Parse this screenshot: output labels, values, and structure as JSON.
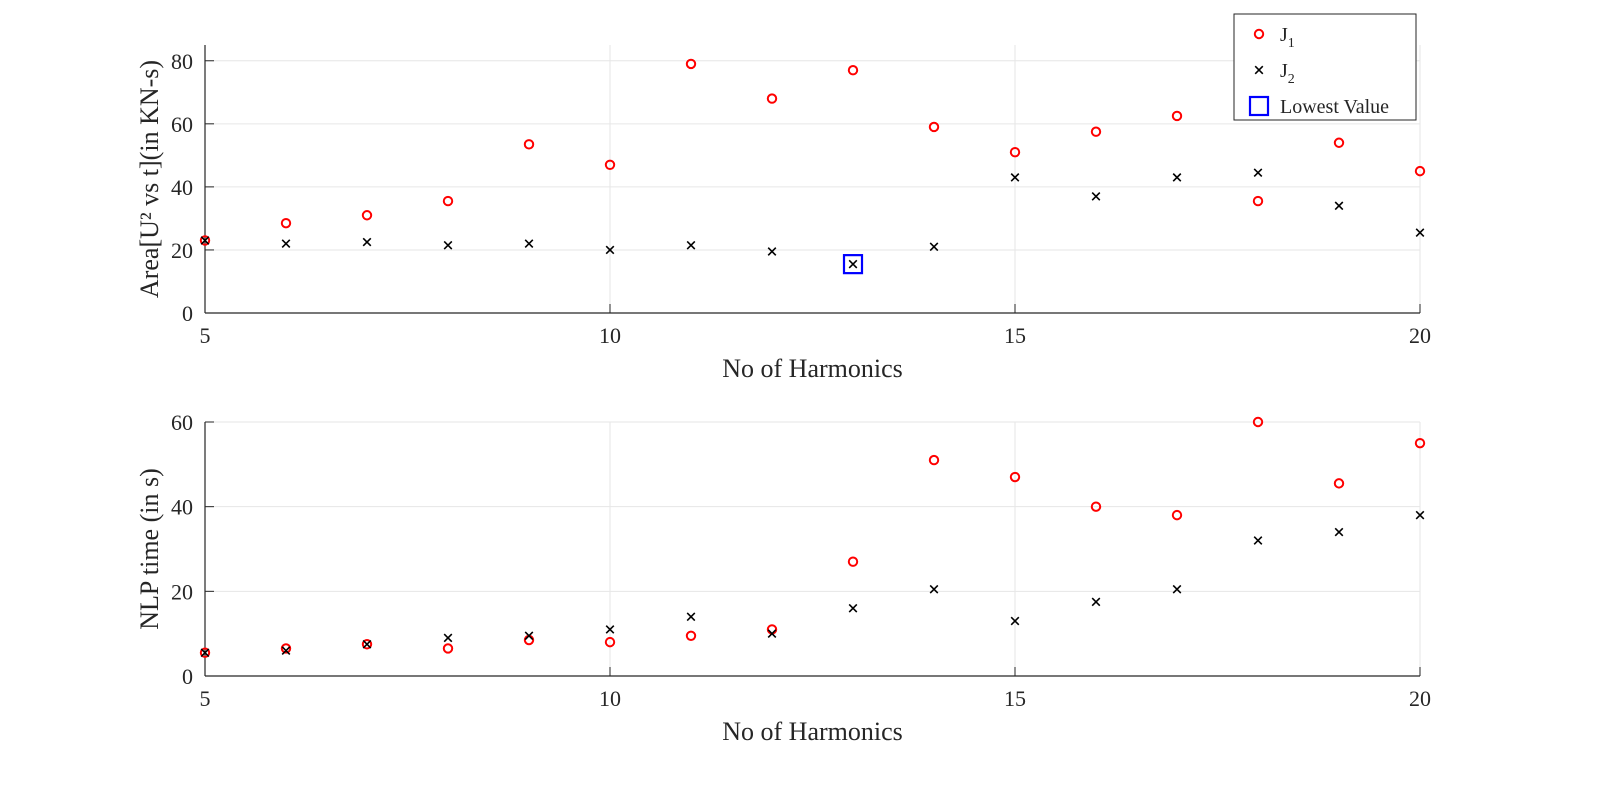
{
  "chart_data": [
    {
      "type": "scatter",
      "xlabel": "No of Harmonics",
      "ylabel": "Area[U² vs t](in KN-s)",
      "xlim": [
        5,
        20
      ],
      "ylim": [
        0,
        85
      ],
      "xticks": [
        "5",
        "10",
        "15",
        "20"
      ],
      "yticks": [
        "0",
        "20",
        "40",
        "60",
        "80"
      ],
      "grid": true,
      "x": [
        5,
        6,
        7,
        8,
        9,
        10,
        11,
        12,
        13,
        14,
        15,
        16,
        17,
        18,
        19,
        20
      ],
      "series": [
        {
          "name": "J1",
          "marker": "circle",
          "color": "#ff0000",
          "values": [
            23,
            28.5,
            31,
            35.5,
            53.5,
            47,
            79,
            68,
            77,
            59,
            51,
            57.5,
            62.5,
            35.5,
            54,
            45
          ]
        },
        {
          "name": "J2",
          "marker": "x",
          "color": "#000000",
          "values": [
            23,
            22,
            22.5,
            21.5,
            22,
            20,
            21.5,
            19.5,
            15.5,
            21,
            43,
            37,
            43,
            44.5,
            34,
            25.5
          ]
        }
      ],
      "highlight": {
        "name": "Lowest Value",
        "marker": "square",
        "color": "#0000ff",
        "x": 13,
        "y": 15.5
      },
      "legend": {
        "placement": "top-right",
        "entries": [
          {
            "label": "J",
            "sub": "1",
            "marker": "circle",
            "color": "#ff0000"
          },
          {
            "label": "J",
            "sub": "2",
            "marker": "x",
            "color": "#000000"
          },
          {
            "label": "Lowest Value",
            "sub": "",
            "marker": "square",
            "color": "#0000ff"
          }
        ]
      }
    },
    {
      "type": "scatter",
      "xlabel": "No of Harmonics",
      "ylabel": "NLP time (in s)",
      "xlim": [
        5,
        20
      ],
      "ylim": [
        0,
        60
      ],
      "xticks": [
        "5",
        "10",
        "15",
        "20"
      ],
      "yticks": [
        "0",
        "20",
        "40",
        "60"
      ],
      "grid": true,
      "x": [
        5,
        6,
        7,
        8,
        9,
        10,
        11,
        12,
        13,
        14,
        15,
        16,
        17,
        18,
        19,
        20
      ],
      "series": [
        {
          "name": "J1",
          "marker": "circle",
          "color": "#ff0000",
          "values": [
            5.5,
            6.5,
            7.5,
            6.5,
            8.5,
            8,
            9.5,
            11,
            27,
            51,
            47,
            40,
            38,
            60,
            45.5,
            55
          ]
        },
        {
          "name": "J2",
          "marker": "x",
          "color": "#000000",
          "values": [
            5.5,
            6,
            7.5,
            9,
            9.5,
            11,
            14,
            10,
            16,
            20.5,
            13,
            17.5,
            20.5,
            32,
            34,
            38
          ]
        }
      ]
    }
  ]
}
